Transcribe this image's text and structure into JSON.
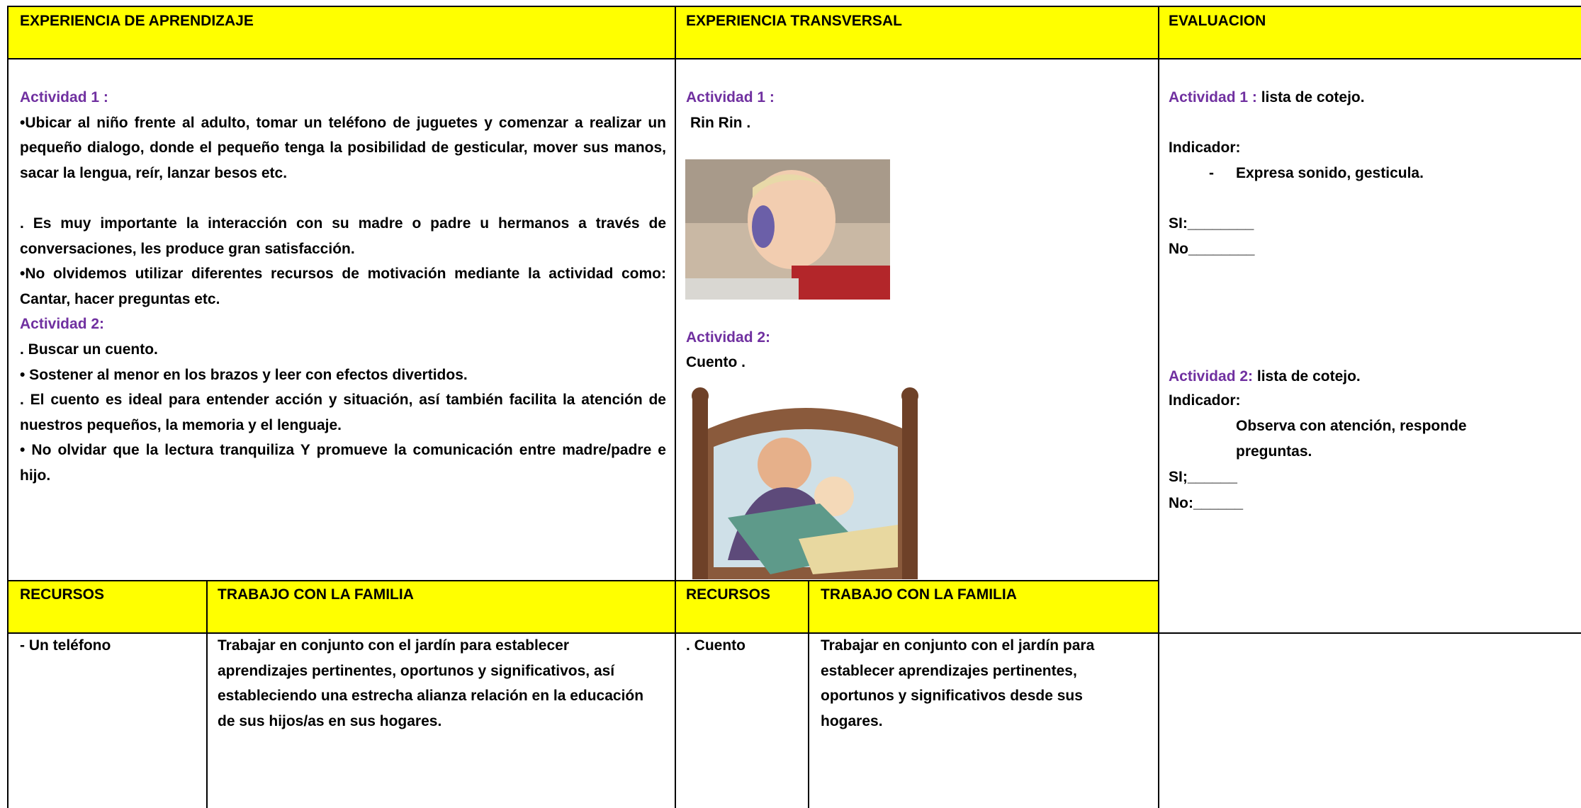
{
  "header": {
    "col1": "EXPERIENCIA DE APRENDIZAJE",
    "col2": "EXPERIENCIA TRANSVERSAL",
    "col3": "EVALUACION"
  },
  "aprendizaje": {
    "actividad1_label": "Actividad 1 :",
    "actividad1_paragraphs": [
      "•Ubicar al niño frente al adulto, tomar un teléfono de juguetes y comenzar a realizar un pequeño dialogo, donde el pequeño tenga la posibilidad de gesticular, mover sus manos, sacar la lengua, reír, lanzar besos etc.",
      ". Es muy importante la interacción con su madre o padre u hermanos a través de conversaciones, les produce gran satisfacción.",
      "•No olvidemos utilizar diferentes recursos de motivación mediante la actividad como: Cantar, hacer preguntas etc."
    ],
    "actividad2_label": "Actividad 2:",
    "actividad2_paragraphs": [
      ". Buscar un cuento.",
      "• Sostener al menor en los brazos y  leer con efectos divertidos.",
      ". El cuento  es ideal para entender acción y situación, así también facilita la atención de nuestros pequeños, la memoria y el lenguaje.",
      "• No olvidar que la lectura tranquiliza Y promueve la comunicación entre madre/padre e hijo."
    ]
  },
  "transversal": {
    "actividad1_label": "Actividad 1 :",
    "actividad1_text": "Rin Rin .",
    "actividad2_label": "Actividad 2:",
    "actividad2_text": "Cuento ."
  },
  "evaluacion": {
    "actividad1_label": "Actividad 1 :",
    "actividad1_text": "lista de cotejo.",
    "indicador1_label": "Indicador:",
    "indicador1_bullet": "-",
    "indicador1_text": "Expresa sonido, gesticula.",
    "si1": "SI:________",
    "no1": "No________",
    "actividad2_label": "Actividad 2:",
    "actividad2_text": "lista de cotejo.",
    "indicador2_label": "Indicador:",
    "indicador2_text": "Observa con atención, responde preguntas.",
    "si2": "SI;______",
    "no2": "No:______"
  },
  "subheader": {
    "recursos1": "RECURSOS",
    "familia1": "TRABAJO CON LA FAMILIA",
    "recursos2": "RECURSOS",
    "familia2": "TRABAJO CON LA FAMILIA"
  },
  "bottom": {
    "recursos1": "- Un teléfono",
    "familia1": "Trabajar en conjunto con el jardín para establecer aprendizajes pertinentes, oportunos y significativos, así estableciendo una estrecha alianza relación en la educación de sus hijos/as en sus hogares.",
    "recursos2": ". Cuento",
    "familia2": "Trabajar en conjunto con el jardín para establecer aprendizajes pertinentes, oportunos y significativos desde sus hogares."
  }
}
